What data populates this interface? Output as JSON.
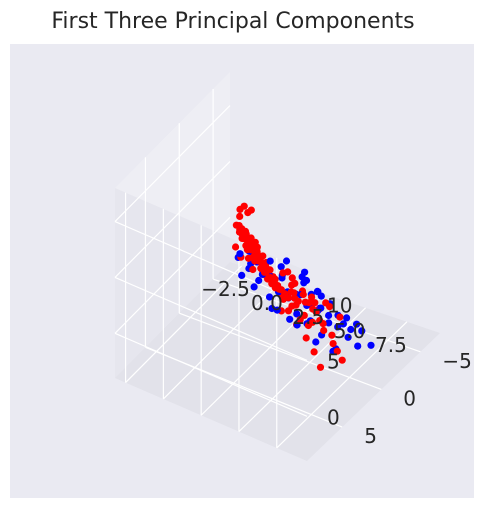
{
  "chart_data": {
    "type": "scatter",
    "projection": "3d",
    "title": "First Three Principal Components",
    "xlabel": "",
    "ylabel": "",
    "zlabel": "",
    "grid": true,
    "legend": "none",
    "xlim": [
      -3.2,
      9.5
    ],
    "ylim": [
      -7.5,
      9.5
    ],
    "zlim": [
      -4,
      13
    ],
    "x_ticks": [
      "−2.5",
      "0.0",
      "2.5",
      "5.0",
      "7.5"
    ],
    "y_ticks": [
      "−5",
      "0",
      "5"
    ],
    "z_ticks": [
      "0",
      "5",
      "10"
    ],
    "colors": {
      "series_a": "#0000ff",
      "series_b": "#ff0000",
      "background": "#eaeaf2",
      "pane_light": "#eeeef4",
      "pane_mid": "#e6e6ee",
      "pane_floor": "#e2e2ea"
    },
    "series": [
      {
        "color": "#0000ff",
        "note_points": "x,y,z in data units",
        "points": [
          [
            -0.9,
            -4.8,
            -0.2
          ],
          [
            -0.5,
            -4.2,
            0.3
          ],
          [
            0.1,
            -3.6,
            0.1
          ],
          [
            0.6,
            -3.2,
            -0.5
          ],
          [
            1.2,
            -2.8,
            0.0
          ],
          [
            1.5,
            -3.9,
            -0.8
          ],
          [
            2.1,
            -2.6,
            0.6
          ],
          [
            2.7,
            -2.0,
            -0.2
          ],
          [
            3.0,
            -3.1,
            -1.0
          ],
          [
            3.5,
            -1.4,
            0.4
          ],
          [
            4.0,
            -2.2,
            -0.7
          ],
          [
            4.4,
            -0.9,
            0.2
          ],
          [
            4.9,
            -1.7,
            -0.3
          ],
          [
            5.3,
            -0.4,
            0.5
          ],
          [
            5.6,
            -2.5,
            -1.1
          ],
          [
            6.1,
            -0.2,
            0.0
          ],
          [
            6.5,
            -1.3,
            -0.6
          ],
          [
            6.9,
            0.3,
            0.4
          ],
          [
            7.2,
            -0.8,
            -0.4
          ],
          [
            7.7,
            0.6,
            0.1
          ],
          [
            0.4,
            -2.0,
            1.1
          ],
          [
            1.8,
            -1.2,
            1.4
          ],
          [
            2.9,
            -0.3,
            1.0
          ],
          [
            3.9,
            0.5,
            1.5
          ],
          [
            4.7,
            1.1,
            0.9
          ],
          [
            5.8,
            1.6,
            1.2
          ],
          [
            6.7,
            2.0,
            0.7
          ],
          [
            7.9,
            2.6,
            0.5
          ],
          [
            8.3,
            3.8,
            1.3
          ],
          [
            5.1,
            2.9,
            1.8
          ],
          [
            3.3,
            1.8,
            2.1
          ],
          [
            2.2,
            0.9,
            2.4
          ],
          [
            1.0,
            -0.4,
            2.0
          ],
          [
            -0.2,
            -1.6,
            1.6
          ],
          [
            4.2,
            3.4,
            2.6
          ],
          [
            6.3,
            3.1,
            2.2
          ],
          [
            7.4,
            4.2,
            1.9
          ],
          [
            2.6,
            2.4,
            3.0
          ],
          [
            1.4,
            1.5,
            2.8
          ],
          [
            3.7,
            -4.4,
            -1.6
          ],
          [
            4.6,
            -3.6,
            -1.3
          ],
          [
            2.4,
            -4.9,
            -1.4
          ],
          [
            5.9,
            -3.0,
            -1.5
          ],
          [
            6.8,
            -2.4,
            -1.2
          ],
          [
            7.5,
            -1.6,
            -0.9
          ],
          [
            0.8,
            -5.4,
            -1.1
          ],
          [
            1.9,
            -5.8,
            -1.7
          ],
          [
            3.1,
            -5.2,
            -2.0
          ],
          [
            8.6,
            1.2,
            0.2
          ],
          [
            8.9,
            0.1,
            -0.3
          ],
          [
            -0.7,
            -3.0,
            0.8
          ],
          [
            0.3,
            -5.0,
            -0.6
          ],
          [
            2.0,
            -3.4,
            1.3
          ],
          [
            3.6,
            -2.6,
            0.9
          ],
          [
            5.0,
            -1.1,
            1.6
          ],
          [
            6.0,
            0.8,
            1.9
          ],
          [
            7.0,
            1.7,
            2.4
          ],
          [
            4.3,
            0.2,
            -0.9
          ],
          [
            3.8,
            -1.9,
            2.2
          ],
          [
            2.5,
            -1.0,
            -1.3
          ],
          [
            8.1,
            6.2,
            7.9
          ]
        ]
      },
      {
        "color": "#ff0000",
        "note_points": "x,y,z in data units",
        "points": [
          [
            -2.0,
            -6.0,
            0.2
          ],
          [
            -1.9,
            -5.8,
            0.6
          ],
          [
            -1.8,
            -5.9,
            -0.2
          ],
          [
            -1.7,
            -5.6,
            0.9
          ],
          [
            -1.6,
            -5.7,
            0.0
          ],
          [
            -1.5,
            -5.4,
            0.4
          ],
          [
            -1.4,
            -5.5,
            -0.4
          ],
          [
            -1.3,
            -5.2,
            0.7
          ],
          [
            -1.2,
            -5.3,
            0.1
          ],
          [
            -1.1,
            -5.0,
            -0.3
          ],
          [
            -1.0,
            -5.1,
            0.5
          ],
          [
            -0.9,
            -4.8,
            0.9
          ],
          [
            -0.8,
            -4.9,
            -0.1
          ],
          [
            -0.7,
            -4.6,
            0.3
          ],
          [
            -0.6,
            -4.7,
            -0.5
          ],
          [
            -0.5,
            -4.4,
            0.6
          ],
          [
            -0.4,
            -4.5,
            0.0
          ],
          [
            -0.3,
            -4.2,
            -0.4
          ],
          [
            -0.2,
            -4.3,
            0.4
          ],
          [
            -0.1,
            -4.0,
            0.8
          ],
          [
            0.0,
            -4.1,
            -0.2
          ],
          [
            0.1,
            -3.8,
            0.2
          ],
          [
            0.2,
            -3.9,
            -0.6
          ],
          [
            0.3,
            -3.6,
            0.5
          ],
          [
            0.4,
            -3.7,
            -0.1
          ],
          [
            0.5,
            -3.4,
            0.3
          ],
          [
            0.6,
            -3.5,
            -0.5
          ],
          [
            0.7,
            -3.2,
            0.1
          ],
          [
            0.8,
            -3.3,
            0.6
          ],
          [
            0.9,
            -3.0,
            -0.3
          ],
          [
            1.0,
            -3.1,
            0.2
          ],
          [
            1.1,
            -2.8,
            -0.4
          ],
          [
            1.2,
            -2.9,
            0.4
          ],
          [
            1.3,
            -2.6,
            0.0
          ],
          [
            1.4,
            -2.7,
            -0.6
          ],
          [
            1.5,
            -2.4,
            0.3
          ],
          [
            1.6,
            -2.5,
            -0.2
          ],
          [
            1.7,
            -2.2,
            0.5
          ],
          [
            1.8,
            -2.3,
            -0.5
          ],
          [
            1.9,
            -2.0,
            0.1
          ],
          [
            -1.9,
            -5.3,
            1.3
          ],
          [
            -1.6,
            -5.0,
            1.6
          ],
          [
            -1.3,
            -4.7,
            1.2
          ],
          [
            -1.0,
            -4.5,
            1.7
          ],
          [
            -0.7,
            -4.2,
            1.4
          ],
          [
            -0.4,
            -3.9,
            1.8
          ],
          [
            -0.1,
            -3.7,
            1.3
          ],
          [
            0.2,
            -3.4,
            1.6
          ],
          [
            0.5,
            -3.1,
            1.1
          ],
          [
            0.8,
            -2.8,
            1.5
          ],
          [
            -2.1,
            -6.3,
            2.0
          ],
          [
            -1.8,
            -6.2,
            2.5
          ],
          [
            -1.5,
            -6.0,
            2.2
          ],
          [
            -1.2,
            -5.8,
            2.7
          ],
          [
            -2.2,
            -6.5,
            1.2
          ],
          [
            -1.7,
            -6.4,
            -0.6
          ],
          [
            -1.3,
            -6.1,
            -0.8
          ],
          [
            -0.9,
            -5.7,
            -0.9
          ],
          [
            -0.5,
            -5.3,
            -1.0
          ],
          [
            -0.1,
            -4.9,
            -1.1
          ],
          [
            0.3,
            -4.5,
            -1.2
          ],
          [
            0.7,
            -4.1,
            -1.3
          ],
          [
            1.1,
            -3.7,
            -1.2
          ],
          [
            1.5,
            -3.3,
            -1.1
          ],
          [
            1.9,
            -2.9,
            -1.0
          ],
          [
            2.3,
            -2.5,
            -0.9
          ],
          [
            2.7,
            -2.1,
            -0.8
          ],
          [
            2.2,
            -3.6,
            -1.5
          ],
          [
            2.6,
            -3.2,
            -1.6
          ],
          [
            3.0,
            -2.8,
            -1.4
          ],
          [
            2.0,
            -1.8,
            0.7
          ],
          [
            2.4,
            -1.5,
            0.2
          ],
          [
            2.8,
            -1.2,
            -0.3
          ],
          [
            3.2,
            -0.9,
            0.6
          ],
          [
            3.6,
            -0.6,
            -0.1
          ],
          [
            4.0,
            -0.3,
            0.4
          ],
          [
            4.4,
            0.0,
            -0.5
          ],
          [
            4.8,
            0.3,
            0.3
          ],
          [
            5.2,
            0.6,
            -0.2
          ],
          [
            5.6,
            0.9,
            0.5
          ],
          [
            3.4,
            -3.4,
            -1.7
          ],
          [
            3.8,
            -3.0,
            -1.8
          ],
          [
            4.2,
            -2.6,
            -1.6
          ],
          [
            4.6,
            -2.2,
            -1.9
          ],
          [
            5.0,
            -1.8,
            -1.7
          ],
          [
            2.1,
            -4.2,
            -2.0
          ],
          [
            2.5,
            -4.6,
            -2.2
          ],
          [
            2.9,
            -4.0,
            -2.3
          ],
          [
            1.7,
            -4.8,
            -1.9
          ],
          [
            3.3,
            -4.4,
            -2.4
          ],
          [
            1.0,
            -1.5,
            1.9
          ],
          [
            1.6,
            -1.0,
            2.3
          ],
          [
            2.2,
            -0.4,
            2.0
          ],
          [
            3.0,
            0.4,
            2.6
          ],
          [
            3.8,
            1.2,
            2.2
          ],
          [
            4.6,
            2.0,
            1.7
          ],
          [
            5.4,
            2.6,
            1.3
          ],
          [
            6.2,
            3.0,
            0.8
          ],
          [
            7.0,
            3.6,
            0.4
          ],
          [
            7.8,
            4.4,
            0.0
          ],
          [
            1.3,
            -0.6,
            3.4
          ],
          [
            2.6,
            0.8,
            3.8
          ],
          [
            0.6,
            -2.2,
            3.0
          ],
          [
            -0.4,
            -3.2,
            2.6
          ],
          [
            4.9,
            3.6,
            2.9
          ],
          [
            5.5,
            -0.8,
            -1.4
          ],
          [
            6.3,
            -0.2,
            -1.0
          ],
          [
            6.9,
            0.9,
            -0.7
          ],
          [
            7.6,
            1.8,
            -0.4
          ],
          [
            8.4,
            2.8,
            -0.1
          ],
          [
            0.9,
            -5.4,
            -1.6
          ],
          [
            1.3,
            -5.8,
            -2.1
          ],
          [
            3.7,
            -5.0,
            -2.6
          ],
          [
            4.3,
            -4.2,
            -2.1
          ],
          [
            5.3,
            -3.4,
            -2.0
          ],
          [
            -1.1,
            -3.3,
            1.0
          ],
          [
            -0.6,
            -2.9,
            0.6
          ],
          [
            0.0,
            -2.6,
            1.0
          ],
          [
            0.4,
            -2.3,
            0.4
          ],
          [
            1.2,
            -1.9,
            0.9
          ],
          [
            2.3,
            -2.9,
            0.8
          ],
          [
            3.1,
            -2.1,
            0.7
          ],
          [
            3.9,
            -1.4,
            0.9
          ],
          [
            4.7,
            -0.9,
            1.1
          ],
          [
            5.5,
            -0.2,
            0.9
          ]
        ]
      }
    ]
  }
}
